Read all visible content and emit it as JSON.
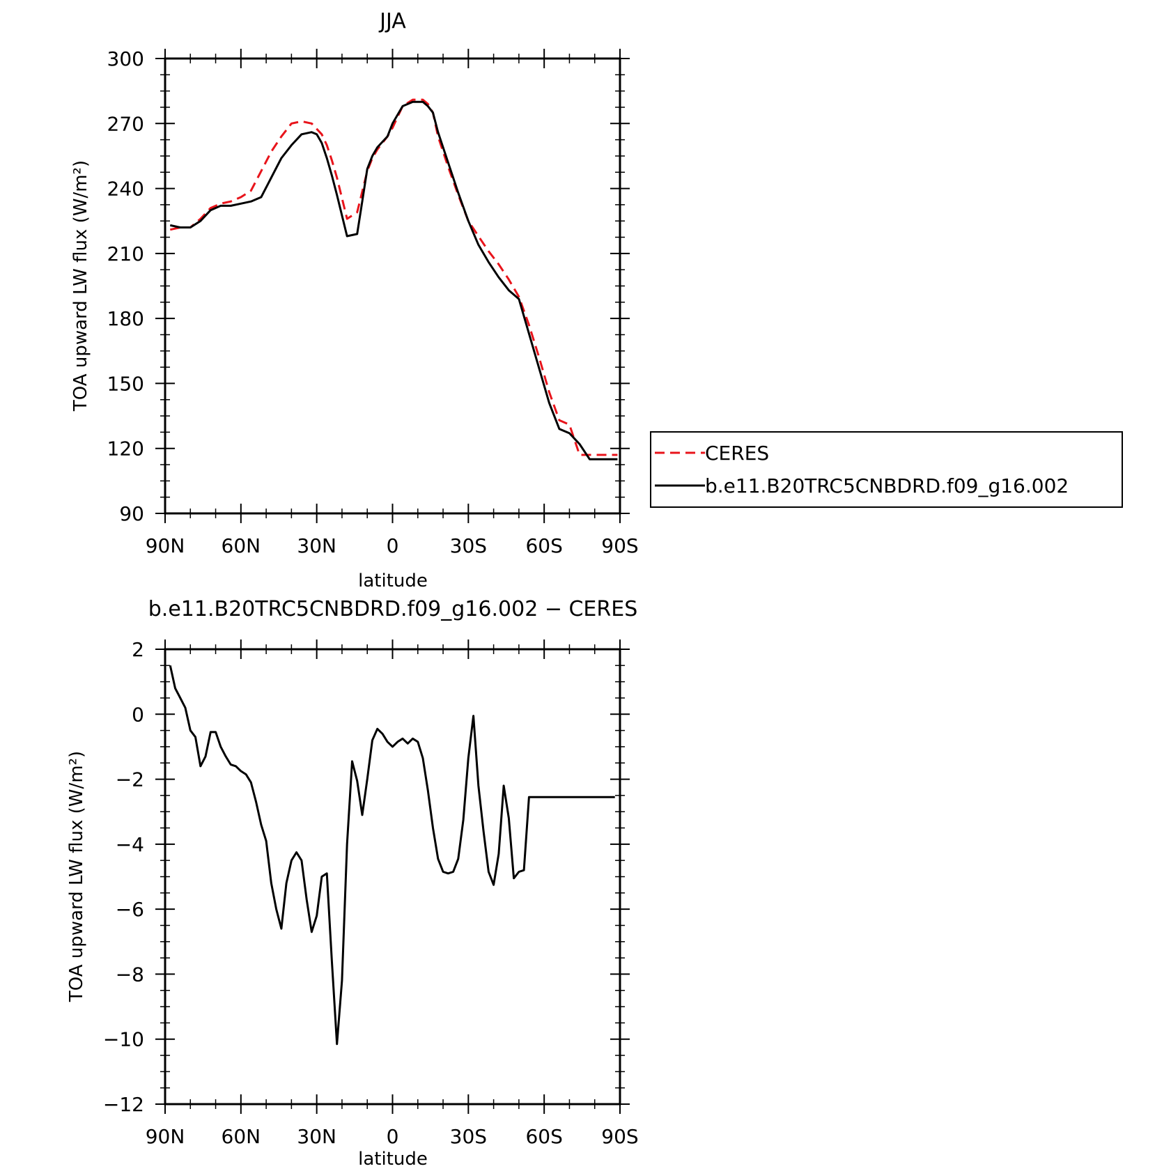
{
  "chart_data": [
    {
      "type": "line",
      "title": "JJA",
      "xlabel": "latitude",
      "ylabel": "TOA upward LW flux (W/m²)",
      "ylim": [
        90,
        300
      ],
      "xlim": [
        90,
        -90
      ],
      "yticks": [
        90,
        120,
        150,
        180,
        210,
        240,
        270,
        300
      ],
      "xticks": [
        90,
        60,
        30,
        0,
        -30,
        -60,
        -90
      ],
      "xtick_labels": [
        "90N",
        "60N",
        "30N",
        "0",
        "30S",
        "60S",
        "90S"
      ],
      "legend": {
        "position": "right",
        "entries": [
          "CERES",
          "b.e11.B20TRC5CNBDRD.f09_g16.002"
        ]
      },
      "series": [
        {
          "name": "CERES",
          "color": "#e8141b",
          "dash": true,
          "x": [
            88,
            84,
            80,
            76,
            72,
            68,
            64,
            60,
            56,
            52,
            48,
            44,
            40,
            36,
            32,
            28,
            26,
            24,
            22,
            18,
            14,
            10,
            8,
            6,
            2,
            0,
            -4,
            -8,
            -12,
            -14,
            -16,
            -18,
            -22,
            -26,
            -30,
            -34,
            -38,
            -42,
            -46,
            -50,
            -54,
            -58,
            -62,
            -66,
            -70,
            -74,
            -78,
            -82,
            -86,
            -89
          ],
          "y": [
            221,
            222,
            222,
            226,
            231,
            233,
            234,
            236,
            239,
            248,
            257,
            264,
            270,
            271,
            270,
            265,
            260,
            253,
            245,
            226,
            229,
            248,
            254,
            258,
            264,
            268,
            278,
            281,
            281,
            279,
            275,
            264,
            250,
            237,
            225,
            218,
            211,
            205,
            198,
            190,
            177,
            162,
            146,
            133,
            131,
            117,
            117,
            117,
            117,
            117
          ]
        },
        {
          "name": "b.e11.B20TRC5CNBDRD.f09_g16.002",
          "color": "#000000",
          "dash": false,
          "x": [
            88,
            84,
            80,
            76,
            72,
            68,
            64,
            60,
            56,
            52,
            48,
            44,
            40,
            36,
            32,
            30,
            28,
            26,
            24,
            22,
            18,
            14,
            12,
            10,
            8,
            6,
            2,
            0,
            -4,
            -8,
            -12,
            -14,
            -16,
            -18,
            -22,
            -26,
            -30,
            -34,
            -38,
            -42,
            -46,
            -50,
            -54,
            -58,
            -62,
            -66,
            -70,
            -74,
            -78,
            -82,
            -86,
            -89
          ],
          "y": [
            223,
            222,
            222,
            225,
            230,
            232,
            232,
            233,
            234,
            236,
            245,
            254,
            260,
            265,
            266,
            265,
            261,
            254,
            246,
            237,
            218,
            219,
            234,
            249,
            255,
            259,
            264,
            270,
            278,
            280,
            280,
            278,
            275,
            266,
            252,
            238,
            225,
            214,
            206,
            199,
            193,
            189,
            173,
            157,
            141,
            129,
            127,
            122,
            115,
            115,
            115,
            115
          ]
        }
      ]
    },
    {
      "type": "line",
      "title": "b.e11.B20TRC5CNBDRD.f09_g16.002 − CERES",
      "xlabel": "latitude",
      "ylabel": "TOA upward LW flux (W/m²)",
      "ylim": [
        -12,
        2
      ],
      "xlim": [
        90,
        -90
      ],
      "yticks": [
        -12,
        -10,
        -8,
        -6,
        -4,
        -2,
        0,
        2
      ],
      "ytick_labels": [
        "−12",
        "−10",
        "−8",
        "−6",
        "−4",
        "−2",
        "0",
        "2"
      ],
      "xticks": [
        90,
        60,
        30,
        0,
        -30,
        -60,
        -90
      ],
      "xtick_labels": [
        "90N",
        "60N",
        "30N",
        "0",
        "30S",
        "60S",
        "90S"
      ],
      "series": [
        {
          "color": "#000000",
          "dash": false,
          "x": [
            88,
            86,
            84,
            82,
            80,
            78,
            76,
            74,
            72,
            70,
            68,
            66,
            64,
            62,
            60,
            58,
            56,
            54,
            52,
            50,
            48,
            46,
            44,
            42,
            40,
            38,
            36,
            34,
            32,
            30,
            28,
            26,
            24,
            22,
            20,
            18,
            16,
            14,
            12,
            10,
            8,
            6,
            4,
            2,
            0,
            -2,
            -4,
            -6,
            -8,
            -10,
            -12,
            -14,
            -16,
            -18,
            -20,
            -22,
            -24,
            -26,
            -28,
            -30,
            -32,
            -34,
            -36,
            -38,
            -40,
            -42,
            -44,
            -46,
            -48,
            -50,
            -52,
            -54,
            -56,
            -58,
            -60,
            -62,
            -64,
            -66,
            -68,
            -70,
            -72,
            -74,
            -76,
            -78,
            -80,
            -82,
            -84,
            -86,
            -88
          ],
          "y": [
            1.5,
            0.8,
            0.5,
            0.2,
            -0.5,
            -0.7,
            -1.6,
            -1.3,
            -0.55,
            -0.55,
            -1.0,
            -1.3,
            -1.55,
            -1.6,
            -1.75,
            -1.85,
            -2.1,
            -2.7,
            -3.4,
            -3.9,
            -5.2,
            -6.0,
            -6.6,
            -5.2,
            -4.5,
            -4.25,
            -4.5,
            -5.7,
            -6.7,
            -6.2,
            -5.0,
            -4.9,
            -7.6,
            -10.15,
            -8.2,
            -4.0,
            -1.45,
            -2.05,
            -3.1,
            -2.0,
            -0.8,
            -0.45,
            -0.6,
            -0.85,
            -1.0,
            -0.85,
            -0.75,
            -0.9,
            -0.75,
            -0.85,
            -1.35,
            -2.35,
            -3.5,
            -4.45,
            -4.85,
            -4.9,
            -4.85,
            -4.45,
            -3.25,
            -1.35,
            -0.05,
            -2.2,
            -3.6,
            -4.85,
            -5.25,
            -4.3,
            -2.2,
            -3.2,
            -5.05,
            -4.85,
            -4.8,
            -2.55,
            -2.55,
            -2.55,
            -2.55,
            -2.55,
            -2.55,
            -2.55,
            -2.55,
            -2.55,
            -2.55,
            -2.55,
            -2.55,
            -2.55,
            -2.55,
            -2.55,
            -2.55,
            -2.55,
            -2.55
          ]
        }
      ]
    }
  ]
}
